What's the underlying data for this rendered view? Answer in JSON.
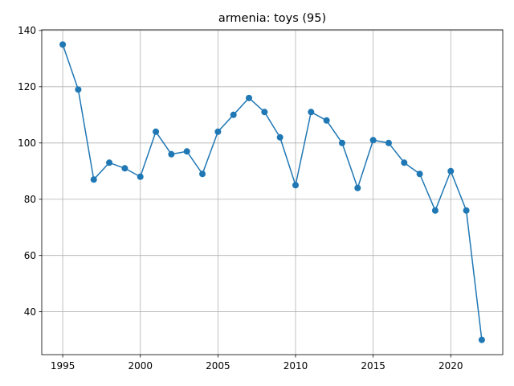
{
  "chart_data": {
    "type": "line",
    "title": "armenia: toys (95)",
    "xlabel": "",
    "ylabel": "",
    "xlim": [
      1993.65,
      2023.35
    ],
    "ylim": [
      24.75,
      140.25
    ],
    "xticks": [
      1995,
      2000,
      2005,
      2010,
      2015,
      2020
    ],
    "yticks": [
      40,
      60,
      80,
      100,
      120,
      140
    ],
    "grid": true,
    "color": "#1f77b4",
    "marker": "circle",
    "series": [
      {
        "x": [
          1995,
          1996,
          1997,
          1998,
          1999,
          2000,
          2001,
          2002,
          2003,
          2004,
          2005,
          2006,
          2007,
          2008,
          2009,
          2010,
          2011,
          2012,
          2013,
          2014,
          2015,
          2016,
          2017,
          2018,
          2019,
          2020,
          2021,
          2022
        ],
        "values": [
          135,
          119,
          87,
          93,
          91,
          88,
          104,
          96,
          97,
          89,
          104,
          110,
          116,
          111,
          102,
          85,
          111,
          108,
          100,
          84,
          101,
          100,
          93,
          89,
          76,
          90,
          76,
          30
        ]
      }
    ]
  }
}
